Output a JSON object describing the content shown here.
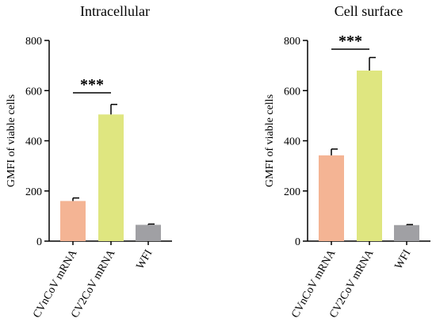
{
  "chart_data": [
    {
      "type": "bar",
      "title": "Intracellular",
      "xlabel": "",
      "ylabel": "GMFI of viable cells",
      "categories": [
        "CVnCoV mRNA",
        "CV2CoV mRNA",
        "WFI"
      ],
      "values": [
        160,
        505,
        65
      ],
      "error": [
        12,
        40,
        3
      ],
      "colors": [
        "#f4b494",
        "#dfe680",
        "#a0a0a4"
      ],
      "ylim": [
        0,
        800
      ],
      "yticks": [
        0,
        200,
        400,
        600,
        800
      ],
      "grid": false,
      "annotations": [
        {
          "text": "***",
          "between": [
            0,
            1
          ]
        }
      ]
    },
    {
      "type": "bar",
      "title": "Cell surface",
      "xlabel": "",
      "ylabel": "GMFI of viable cells",
      "categories": [
        "CVnCoV mRNA",
        "CV2CoV mRNA",
        "WFI"
      ],
      "values": [
        342,
        680,
        64
      ],
      "error": [
        25,
        52,
        2
      ],
      "colors": [
        "#f4b494",
        "#dfe680",
        "#a0a0a4"
      ],
      "ylim": [
        0,
        800
      ],
      "yticks": [
        0,
        200,
        400,
        600,
        800
      ],
      "grid": false,
      "annotations": [
        {
          "text": "***",
          "between": [
            0,
            1
          ]
        }
      ]
    }
  ]
}
